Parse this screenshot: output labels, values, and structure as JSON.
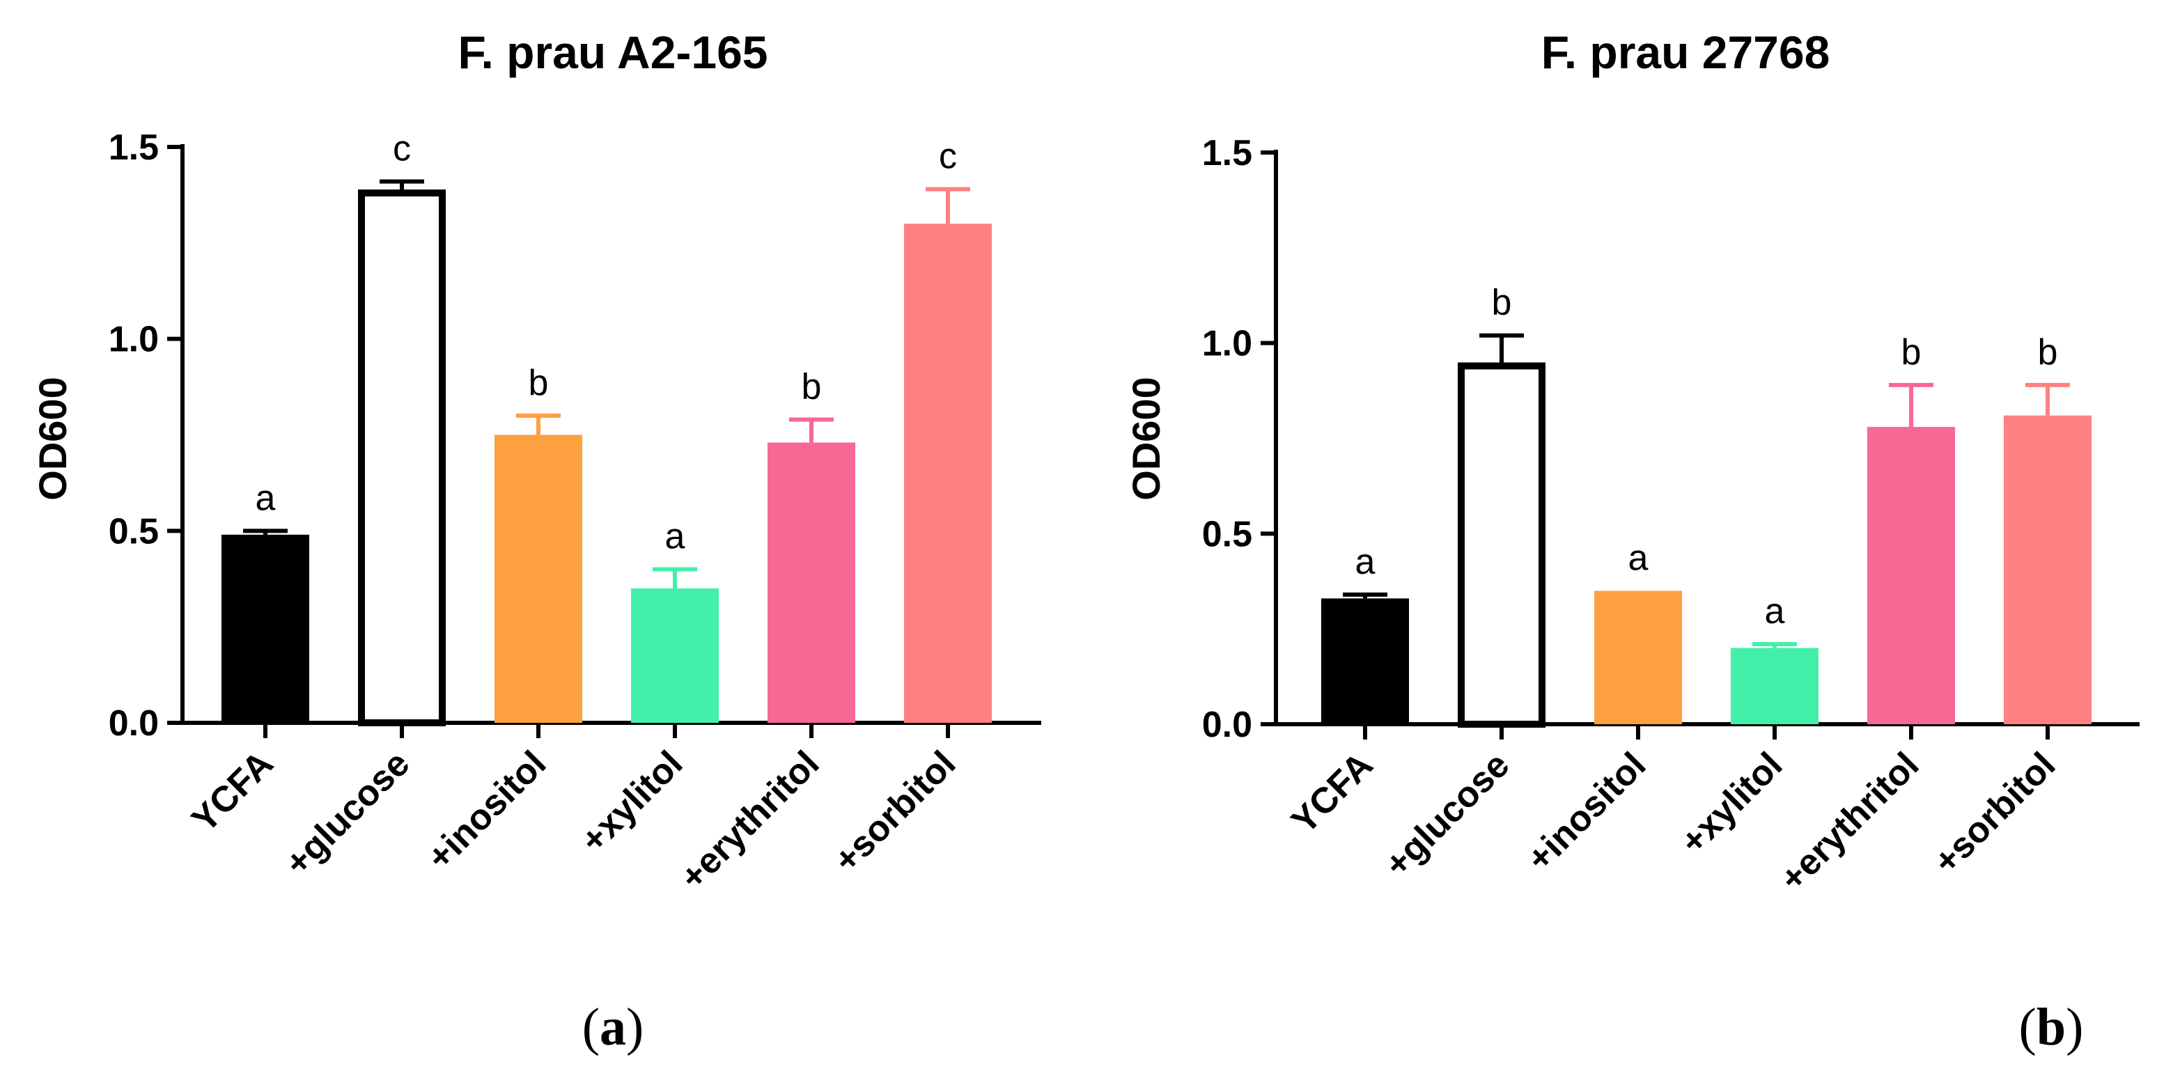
{
  "colors": {
    "YCFA": "#000000",
    "+glucose": "#ffffff",
    "+inositol": "#fca040",
    "+xylitol": "#42f0aa",
    "+erythritol": "#f76895",
    "+sorbitol": "#ff8080"
  },
  "chart_data": [
    {
      "type": "bar",
      "panel_label": "a",
      "title": "F. prau A2-165",
      "xlabel": "",
      "ylabel": "OD600",
      "ylim": [
        0,
        1.5
      ],
      "yticks": [
        "0.0",
        "0.5",
        "1.0",
        "1.5"
      ],
      "categories": [
        "YCFA",
        "+glucose",
        "+inositol",
        "+xylitol",
        "+erythritol",
        "+sorbitol"
      ],
      "values": [
        0.49,
        1.38,
        0.75,
        0.35,
        0.73,
        1.3
      ],
      "errors": [
        0.01,
        0.03,
        0.05,
        0.05,
        0.06,
        0.09
      ],
      "significance": [
        "a",
        "c",
        "b",
        "a",
        "b",
        "c"
      ]
    },
    {
      "type": "bar",
      "panel_label": "b",
      "title": "F. prau 27768",
      "xlabel": "",
      "ylabel": "OD600",
      "ylim": [
        0,
        1.5
      ],
      "yticks": [
        "0.0",
        "0.5",
        "1.0",
        "1.5"
      ],
      "categories": [
        "YCFA",
        "+glucose",
        "+inositol",
        "+xylitol",
        "+erythritol",
        "+sorbitol"
      ],
      "values": [
        0.33,
        0.94,
        0.35,
        0.2,
        0.78,
        0.81
      ],
      "errors": [
        0.01,
        0.08,
        0.0,
        0.01,
        0.11,
        0.08
      ],
      "significance": [
        "a",
        "b",
        "a",
        "a",
        "b",
        "b"
      ]
    }
  ]
}
